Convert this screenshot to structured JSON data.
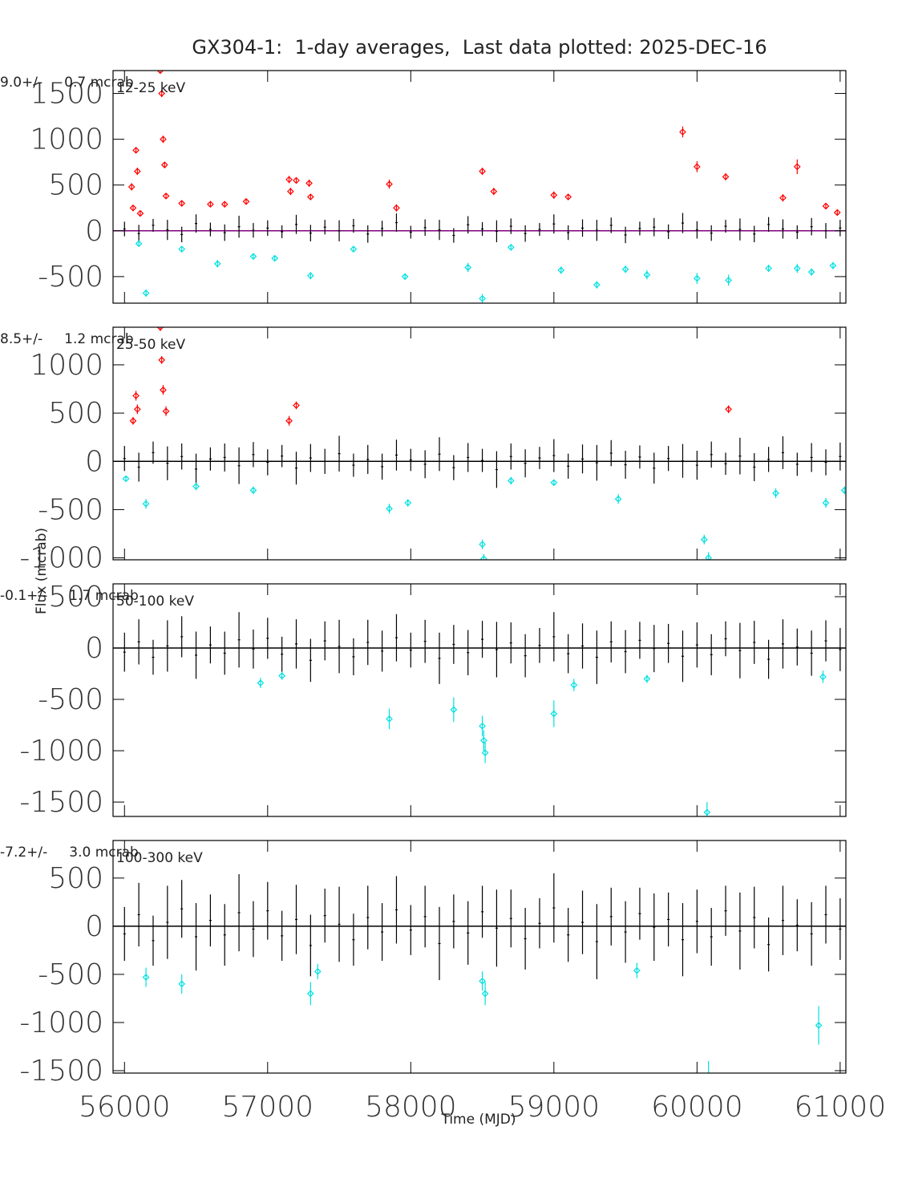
{
  "figure": {
    "title": "GX304-1:  1-day averages,  Last data plotted: 2025-DEC-16",
    "xlabel": "Time (MJD)",
    "ylabel": "Flux (mcrab)"
  },
  "chart_data": [
    {
      "type": "errorbar",
      "band": "12-25 keV",
      "mean_label": "9.0+/-     0.7 mcrab",
      "xlim": [
        55920,
        61040
      ],
      "xticks": [
        56000,
        57000,
        58000,
        59000,
        60000,
        61000
      ],
      "ylim": [
        -790,
        1750
      ],
      "yticks": [
        -500,
        0,
        500,
        1000,
        1500
      ],
      "hline": 0,
      "hline_color": "#800080",
      "series": [
        {
          "color": "#000000",
          "marker": "none",
          "x": [
            56000,
            56100,
            56200,
            56300,
            56400,
            56500,
            56600,
            56700,
            56800,
            56900,
            57000,
            57100,
            57200,
            57300,
            57400,
            57500,
            57600,
            57700,
            57800,
            57900,
            58000,
            58100,
            58200,
            58300,
            58400,
            58500,
            58600,
            58700,
            58800,
            58900,
            59000,
            59100,
            59200,
            59300,
            59400,
            59500,
            59600,
            59700,
            59800,
            59900,
            60000,
            60100,
            60200,
            60300,
            60400,
            60500,
            60600,
            60700,
            60800,
            60900,
            61000
          ],
          "values": [
            20,
            -30,
            60,
            10,
            -40,
            80,
            15,
            -20,
            45,
            5,
            30,
            -10,
            70,
            -25,
            40,
            0,
            55,
            -35,
            25,
            90,
            -15,
            35,
            10,
            -50,
            65,
            20,
            -5,
            50,
            -30,
            15,
            75,
            -20,
            30,
            5,
            60,
            -45,
            25,
            40,
            -10,
            85,
            10,
            -25,
            50,
            15,
            -35,
            70,
            20,
            -15,
            45,
            0,
            30
          ],
          "errors": [
            80,
            95,
            70,
            110,
            85,
            100,
            75,
            90,
            120,
            80,
            85,
            70,
            105,
            90,
            80,
            115,
            75,
            95,
            85,
            100,
            70,
            90,
            110,
            80,
            95,
            75,
            120,
            85,
            90,
            70,
            105,
            80,
            95,
            115,
            85,
            90,
            75,
            100,
            80,
            110,
            95,
            85,
            70,
            120,
            90,
            80,
            105,
            75,
            95,
            85,
            90
          ]
        },
        {
          "color": "#ff0000",
          "marker": "diamond",
          "x": [
            56050,
            56060,
            56080,
            56090,
            56110,
            56250,
            56260,
            56270,
            56280,
            56290,
            56400,
            56600,
            56700,
            56850,
            57150,
            57160,
            57200,
            57290,
            57300,
            57850,
            57900,
            58500,
            58580,
            59000,
            59100,
            59900,
            60000,
            60200,
            60700,
            60600,
            60900,
            60980
          ],
          "values": [
            480,
            250,
            880,
            650,
            190,
            1750,
            1500,
            1000,
            720,
            380,
            300,
            290,
            290,
            320,
            560,
            430,
            550,
            520,
            370,
            510,
            250,
            650,
            430,
            390,
            370,
            1080,
            700,
            590,
            700,
            360,
            270,
            200
          ],
          "errors": [
            40,
            30,
            30,
            40,
            30,
            30,
            40,
            40,
            30,
            30,
            30,
            30,
            30,
            30,
            40,
            40,
            30,
            40,
            30,
            50,
            40,
            40,
            40,
            40,
            30,
            60,
            60,
            40,
            80,
            40,
            30,
            30
          ]
        },
        {
          "color": "#00e0e0",
          "marker": "diamond",
          "x": [
            56150,
            56100,
            56400,
            56650,
            56900,
            57050,
            57300,
            57600,
            57960,
            58400,
            58500,
            58700,
            59050,
            59300,
            59500,
            59650,
            60000,
            60220,
            60500,
            60700,
            60800,
            60950
          ],
          "values": [
            -680,
            -140,
            -200,
            -360,
            -280,
            -300,
            -490,
            -200,
            -500,
            -400,
            -740,
            -180,
            -430,
            -590,
            -420,
            -480,
            -520,
            -540,
            -410,
            -410,
            -450,
            -380
          ],
          "errors": [
            40,
            30,
            30,
            40,
            30,
            30,
            40,
            30,
            30,
            50,
            50,
            30,
            40,
            40,
            40,
            50,
            60,
            60,
            40,
            50,
            40,
            40
          ]
        }
      ]
    },
    {
      "type": "errorbar",
      "band": "25-50 keV",
      "mean_label": "8.5+/-     1.2 mcrab",
      "xlim": [
        55920,
        61040
      ],
      "xticks": [
        56000,
        57000,
        58000,
        59000,
        60000,
        61000
      ],
      "ylim": [
        -1020,
        1390
      ],
      "yticks": [
        -1000,
        -500,
        0,
        500,
        1000
      ],
      "hline": 0,
      "hline_color": "#000000",
      "series": [
        {
          "color": "#000000",
          "marker": "none",
          "x": [
            56000,
            56100,
            56200,
            56300,
            56400,
            56500,
            56600,
            56700,
            56800,
            56900,
            57000,
            57100,
            57200,
            57300,
            57400,
            57500,
            57600,
            57700,
            57800,
            57900,
            58000,
            58100,
            58200,
            58300,
            58400,
            58500,
            58600,
            58700,
            58800,
            58900,
            59000,
            59100,
            59200,
            59300,
            59400,
            59500,
            59600,
            59700,
            59800,
            59900,
            60000,
            60100,
            60200,
            60300,
            60400,
            60500,
            60600,
            60700,
            60800,
            60900,
            61000
          ],
          "values": [
            30,
            -60,
            90,
            -20,
            50,
            -80,
            25,
            40,
            -45,
            70,
            -10,
            55,
            -70,
            35,
            0,
            80,
            -40,
            20,
            -55,
            65,
            15,
            -30,
            75,
            -65,
            40,
            10,
            -85,
            50,
            -20,
            35,
            60,
            -50,
            25,
            -15,
            85,
            -35,
            45,
            -70,
            30,
            5,
            -40,
            70,
            -25,
            55,
            -60,
            20,
            90,
            -30,
            40,
            -10,
            50
          ],
          "errors": [
            130,
            150,
            115,
            175,
            135,
            160,
            120,
            145,
            190,
            130,
            135,
            115,
            170,
            145,
            130,
            185,
            120,
            150,
            135,
            160,
            115,
            145,
            175,
            130,
            150,
            120,
            190,
            135,
            145,
            115,
            170,
            130,
            150,
            185,
            135,
            145,
            120,
            160,
            130,
            175,
            150,
            135,
            115,
            190,
            145,
            130,
            170,
            120,
            150,
            135,
            145
          ]
        },
        {
          "color": "#ff0000",
          "marker": "diamond",
          "x": [
            56060,
            56080,
            56090,
            56250,
            56260,
            56270,
            56290,
            57150,
            57200,
            60220
          ],
          "values": [
            420,
            680,
            540,
            1390,
            1050,
            740,
            520,
            420,
            580,
            540
          ],
          "errors": [
            40,
            50,
            50,
            40,
            40,
            50,
            50,
            50,
            40,
            40
          ]
        },
        {
          "color": "#00e0e0",
          "marker": "diamond",
          "x": [
            56010,
            56150,
            56500,
            56900,
            57850,
            57980,
            58500,
            58510,
            58700,
            59000,
            59450,
            60050,
            60080,
            60550,
            60900,
            61030
          ],
          "values": [
            -180,
            -440,
            -260,
            -300,
            -490,
            -430,
            -860,
            -1010,
            -200,
            -220,
            -390,
            -810,
            -1000,
            -330,
            -430,
            -300
          ],
          "errors": [
            30,
            50,
            40,
            40,
            50,
            40,
            50,
            50,
            40,
            30,
            50,
            50,
            60,
            50,
            50,
            40
          ]
        }
      ]
    },
    {
      "type": "errorbar",
      "band": "50-100 keV",
      "mean_label": "-0.1+/-     1.7 mcrab",
      "xlim": [
        55920,
        61040
      ],
      "xticks": [
        56000,
        57000,
        58000,
        59000,
        60000,
        61000
      ],
      "ylim": [
        -1640,
        625
      ],
      "yticks": [
        -1500,
        -1000,
        -500,
        0,
        500
      ],
      "hline": 0,
      "hline_color": "#000000",
      "series": [
        {
          "color": "#000000",
          "marker": "none",
          "x": [
            56000,
            56100,
            56200,
            56300,
            56400,
            56500,
            56600,
            56700,
            56800,
            56900,
            57000,
            57100,
            57200,
            57300,
            57400,
            57500,
            57600,
            57700,
            57800,
            57900,
            58000,
            58100,
            58200,
            58300,
            58400,
            58500,
            58600,
            58700,
            58800,
            58900,
            59000,
            59100,
            59200,
            59300,
            59400,
            59500,
            59600,
            59700,
            59800,
            59900,
            60000,
            60100,
            60200,
            60300,
            60400,
            60500,
            60600,
            60700,
            60800,
            60900,
            61000
          ],
          "values": [
            -40,
            60,
            -90,
            20,
            110,
            -70,
            30,
            -50,
            80,
            -10,
            95,
            -60,
            40,
            -120,
            70,
            15,
            -85,
            55,
            -30,
            100,
            -20,
            65,
            -100,
            35,
            -45,
            85,
            -15,
            50,
            -75,
            25,
            110,
            -55,
            20,
            -90,
            60,
            -35,
            75,
            -5,
            45,
            -80,
            30,
            -65,
            90,
            -25,
            55,
            -110,
            40,
            10,
            -50,
            70,
            -15
          ],
          "errors": [
            190,
            220,
            170,
            250,
            200,
            230,
            180,
            210,
            270,
            190,
            200,
            170,
            240,
            210,
            190,
            260,
            180,
            220,
            200,
            230,
            170,
            210,
            250,
            190,
            220,
            180,
            270,
            200,
            210,
            170,
            240,
            190,
            220,
            260,
            200,
            210,
            180,
            230,
            190,
            250,
            220,
            200,
            170,
            270,
            210,
            190,
            240,
            180,
            220,
            200,
            210
          ]
        },
        {
          "color": "#00e0e0",
          "marker": "diamond",
          "x": [
            56950,
            57100,
            57850,
            58300,
            58500,
            58510,
            58520,
            59000,
            59140,
            59650,
            60070,
            60880
          ],
          "values": [
            -340,
            -270,
            -690,
            -600,
            -760,
            -900,
            -1020,
            -640,
            -360,
            -300,
            -1600,
            -280
          ],
          "errors": [
            50,
            40,
            100,
            120,
            100,
            100,
            100,
            130,
            60,
            40,
            100,
            60
          ]
        }
      ]
    },
    {
      "type": "errorbar",
      "band": "100-300 keV",
      "mean_label": "-7.2+/-     3.0 mcrab",
      "xlim": [
        55920,
        61040
      ],
      "xticks": [
        56000,
        57000,
        58000,
        59000,
        60000,
        61000
      ],
      "ylim": [
        -1525,
        890
      ],
      "yticks": [
        -1500,
        -1000,
        -500,
        0,
        500
      ],
      "hline": 0,
      "hline_color": "#000000",
      "series": [
        {
          "color": "#000000",
          "marker": "none",
          "x": [
            56000,
            56100,
            56200,
            56300,
            56400,
            56500,
            56600,
            56700,
            56800,
            56900,
            57000,
            57100,
            57200,
            57300,
            57400,
            57500,
            57600,
            57700,
            57800,
            57900,
            58000,
            58100,
            58200,
            58300,
            58400,
            58500,
            58600,
            58700,
            58800,
            58900,
            59000,
            59100,
            59200,
            59300,
            59400,
            59500,
            59600,
            59700,
            59800,
            59900,
            60000,
            60100,
            60200,
            60300,
            60400,
            60500,
            60600,
            60700,
            60800,
            60900,
            61000
          ],
          "values": [
            -80,
            120,
            -150,
            40,
            180,
            -110,
            60,
            -90,
            140,
            -30,
            160,
            -100,
            70,
            -200,
            110,
            20,
            -140,
            90,
            -60,
            170,
            -40,
            100,
            -180,
            50,
            -70,
            150,
            -20,
            80,
            -130,
            30,
            190,
            -90,
            40,
            -160,
            100,
            -60,
            130,
            -10,
            70,
            -140,
            50,
            -110,
            160,
            -50,
            90,
            -190,
            60,
            10,
            -80,
            120,
            -30
          ],
          "errors": [
            280,
            330,
            260,
            380,
            300,
            350,
            270,
            320,
            400,
            290,
            300,
            260,
            360,
            320,
            280,
            390,
            270,
            330,
            300,
            350,
            260,
            320,
            380,
            280,
            330,
            270,
            400,
            300,
            320,
            260,
            360,
            280,
            330,
            390,
            300,
            320,
            270,
            350,
            280,
            380,
            330,
            300,
            260,
            400,
            320,
            280,
            360,
            270,
            330,
            300,
            320
          ]
        },
        {
          "color": "#00e0e0",
          "marker": "diamond",
          "x": [
            56150,
            56400,
            57300,
            57350,
            58500,
            58520,
            59580,
            60080,
            60850
          ],
          "values": [
            -530,
            -600,
            -700,
            -470,
            -570,
            -700,
            -460,
            -1550,
            -1030
          ],
          "errors": [
            100,
            100,
            120,
            80,
            100,
            120,
            80,
            150,
            200
          ]
        }
      ]
    }
  ]
}
